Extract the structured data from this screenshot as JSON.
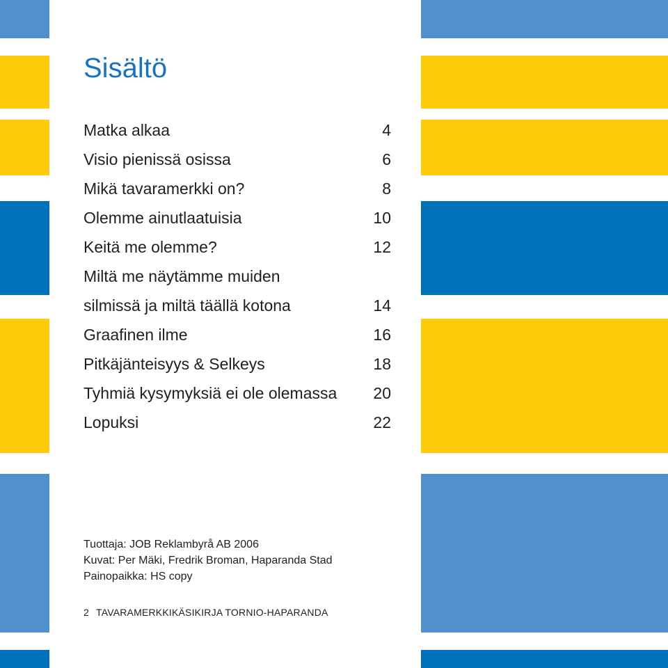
{
  "colors": {
    "yellow": "#fdcb09",
    "light_blue": "#5091cd",
    "dark_blue": "#0070bb",
    "title_blue": "#1a73bd"
  },
  "title": "Sisältö",
  "toc": [
    {
      "label": "Matka alkaa",
      "page": "4"
    },
    {
      "label": "Visio pienissä osissa",
      "page": "6"
    },
    {
      "label": "Mikä tavaramerkki on?",
      "page": "8"
    },
    {
      "label": "Olemme ainutlaatuisia",
      "page": "10"
    },
    {
      "label": "Keitä me olemme?",
      "page": "12"
    },
    {
      "label": "Miltä me näytämme muiden",
      "page": ""
    },
    {
      "label": "silmissä ja miltä täällä kotona",
      "page": "14"
    },
    {
      "label": "Graafinen ilme",
      "page": "16"
    },
    {
      "label": "Pitkäjänteisyys & Selkeys",
      "page": "18"
    },
    {
      "label": "Tyhmiä kysymyksiä ei ole olemassa",
      "page": "20"
    },
    {
      "label": "Lopuksi",
      "page": "22"
    }
  ],
  "credits": {
    "producer": "Tuottaja: JOB Reklambyrå AB 2006",
    "photos": "Kuvat: Per Mäki, Fredrik Broman, Haparanda Stad",
    "printer": "Painopaikka: HS copy"
  },
  "footer": {
    "page_number": "2",
    "publication": "TAVARAMERKKIKÄSIKIRJA TORNIO-HAPARANDA"
  }
}
